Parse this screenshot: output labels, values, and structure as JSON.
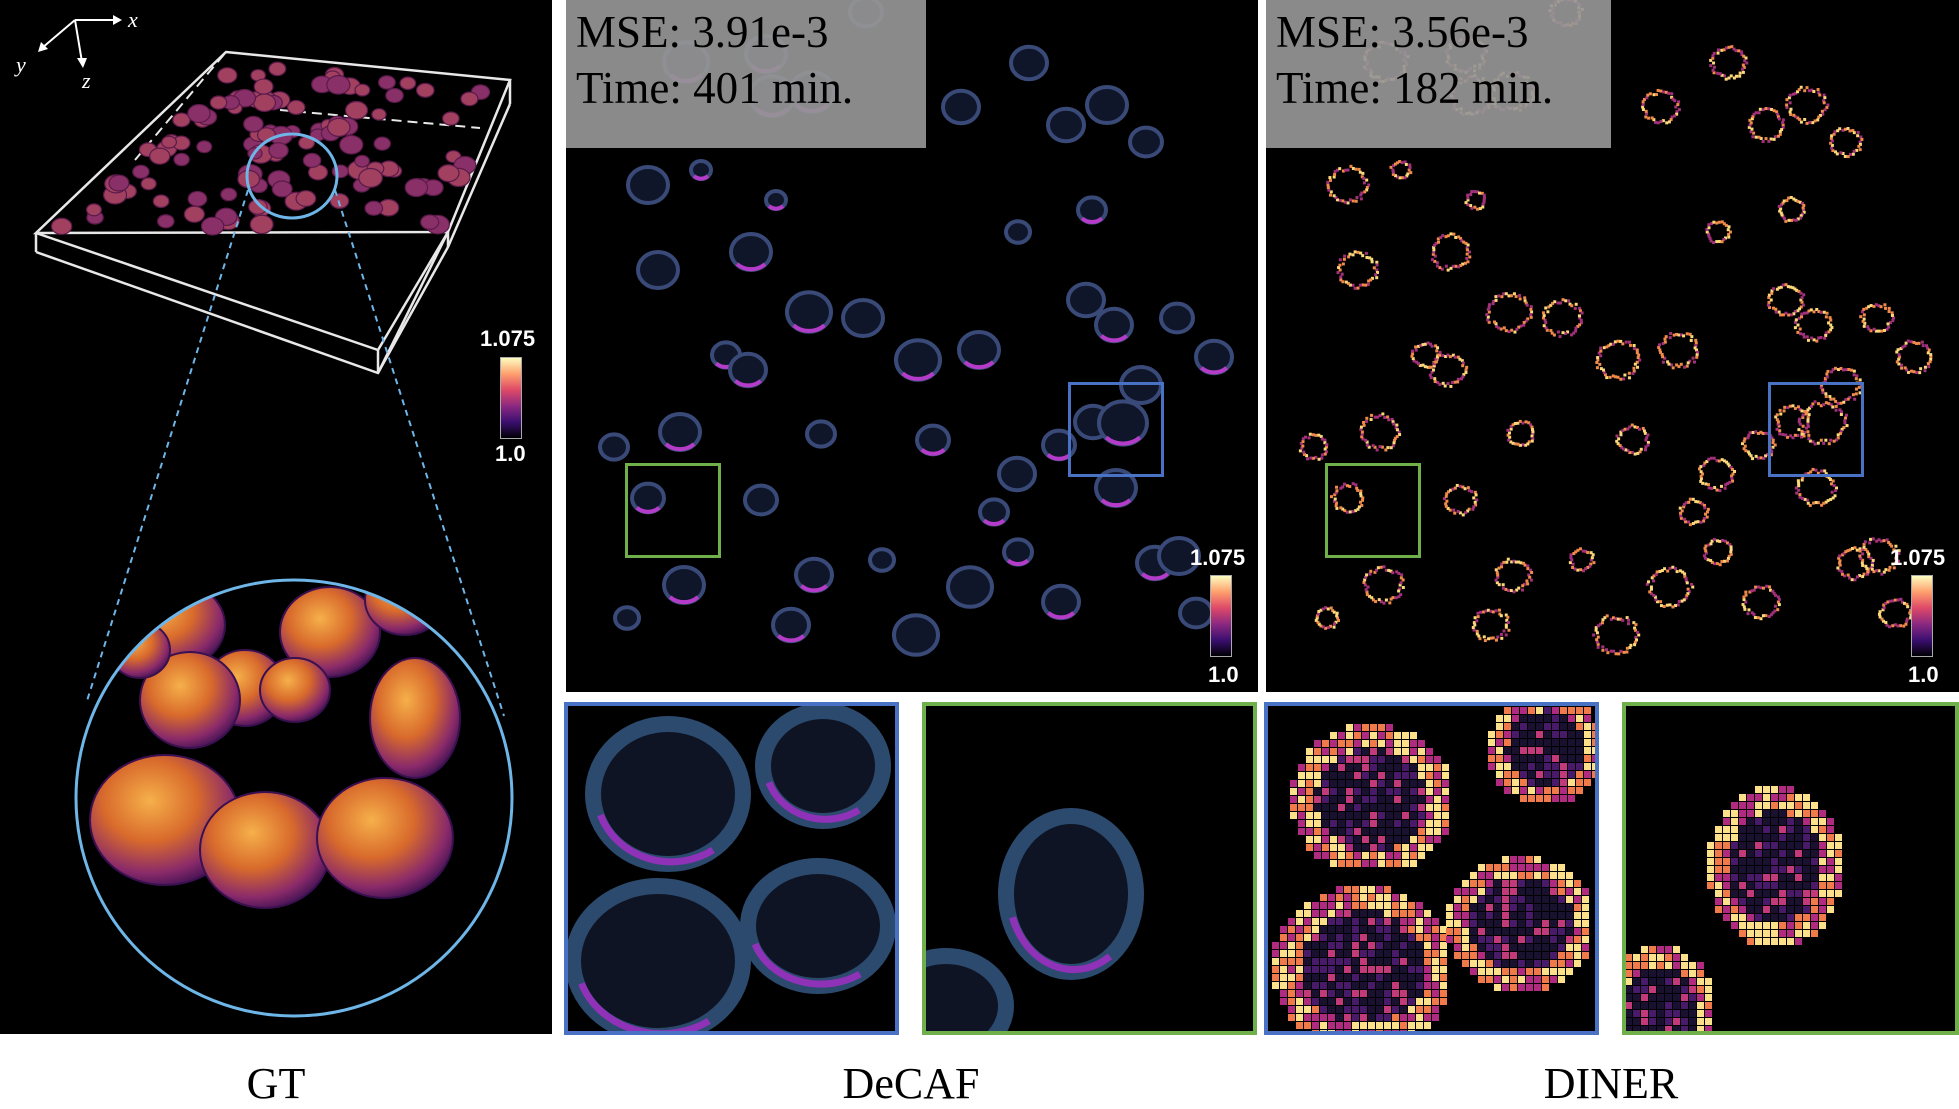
{
  "panels": {
    "gt": {
      "caption": "GT",
      "axes": {
        "x": "x",
        "y": "y",
        "z": "z"
      },
      "colorbar": {
        "max": "1.075",
        "min": "1.0"
      }
    },
    "decaf": {
      "caption": "DeCAF",
      "mse": "MSE: 3.91e-3",
      "time": "Time: 401 min.",
      "colorbar": {
        "max": "1.075",
        "min": "1.0"
      }
    },
    "diner": {
      "caption": "DINER",
      "mse": "MSE: 3.56e-3",
      "time": "Time: 182 min.",
      "colorbar": {
        "max": "1.075",
        "min": "1.0"
      }
    }
  },
  "colors": {
    "blue_box": "#4a72c4",
    "green_box": "#6fb04a",
    "circle": "#6fb6e8",
    "decaf_cell": "#3a4a78",
    "decaf_edge": "#b43cc8",
    "diner_edge": "#f08a4a",
    "gt_cell": "#c2552e"
  }
}
